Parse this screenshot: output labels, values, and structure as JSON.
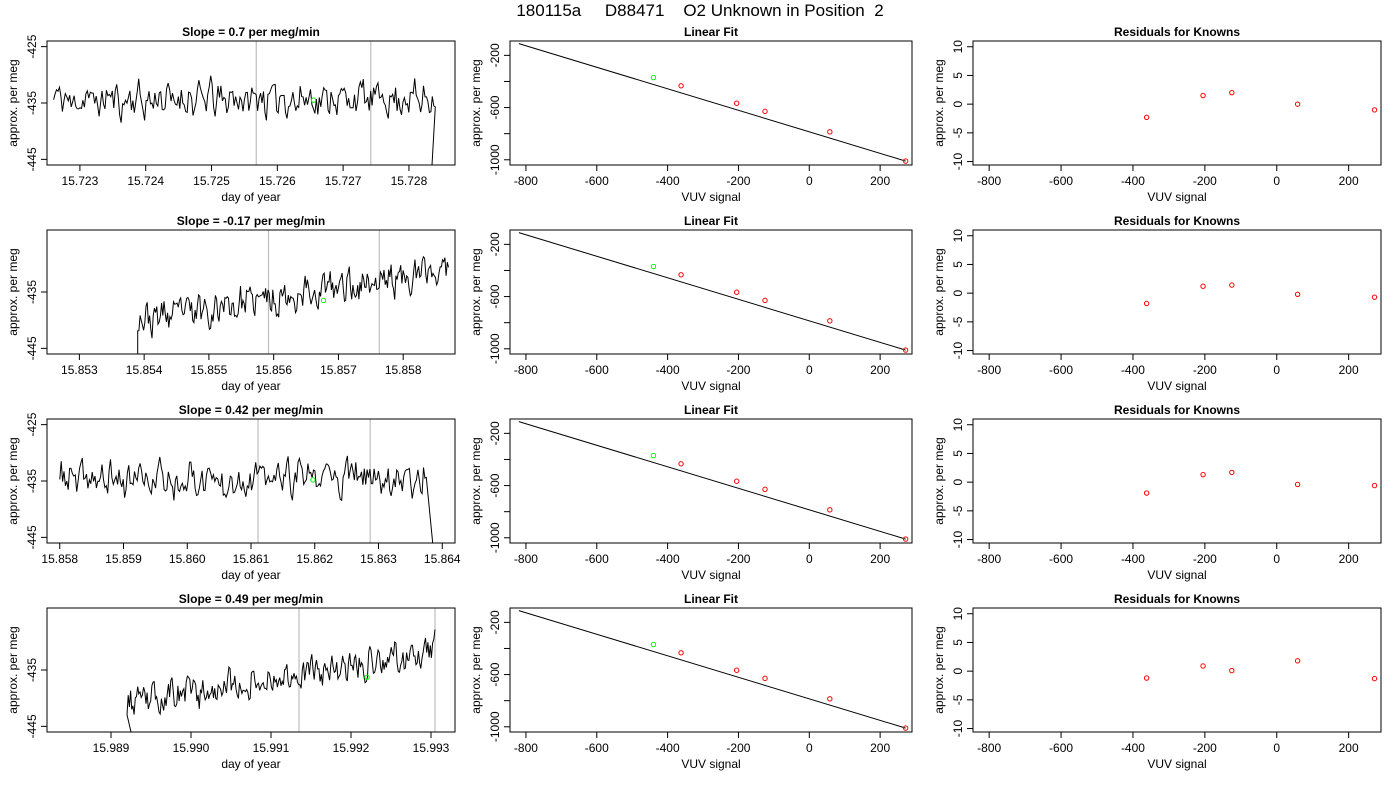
{
  "figure": {
    "title": "180115a     D88471    O2 Unknown in Position  2"
  },
  "colors": {
    "line": "#000000",
    "known_point": "#ff0000",
    "unknown_point": "#00ff00",
    "vertical_marker": "#bebebe"
  },
  "chart_data": [
    {
      "type": "line",
      "panel": "time-series",
      "title": "Slope =  0.7  per meg/min",
      "xlabel": "day of year",
      "ylabel": "approx. per meg",
      "xlim": [
        15.7225,
        15.7287
      ],
      "ylim": [
        -446,
        -424
      ],
      "xticks": [
        15.723,
        15.724,
        15.725,
        15.726,
        15.727,
        15.728
      ],
      "xtick_labels": [
        "15.723",
        "15.724",
        "15.725",
        "15.726",
        "15.727",
        "15.728"
      ],
      "yticks": [
        -425,
        -435,
        -445
      ],
      "ytick_labels": [
        "-425",
        "-435",
        "-445"
      ],
      "x_start": 15.7226,
      "x_end": 15.7284,
      "baseline": -434.5,
      "trend": 0.4,
      "noise": 4.0,
      "seed": 11,
      "end_drop": [
        15.72835,
        -446
      ],
      "start_clip": null,
      "vlines": [
        15.72568,
        15.72742
      ],
      "unknown_point": {
        "x": 15.72655,
        "y": -434.5
      }
    },
    {
      "type": "line",
      "panel": "linear-fit",
      "title": "Linear Fit",
      "xlabel": "VUV signal",
      "ylabel": "approx. per meg",
      "xlim": [
        -845,
        290
      ],
      "ylim": [
        -1040,
        -90
      ],
      "xticks": [
        -800,
        -600,
        -400,
        -200,
        0,
        200
      ],
      "xtick_labels": [
        "-800",
        "-600",
        "-400",
        "-200",
        "0",
        "200"
      ],
      "yticks": [
        -200,
        -400,
        -600,
        -800,
        -1000
      ],
      "ytick_labels": [
        "-200",
        "",
        "-600",
        "",
        "-1000"
      ],
      "fit_line": {
        "x": [
          -820,
          272
        ],
        "y": [
          -110,
          -1010
        ]
      },
      "known_points": [
        {
          "x": -362,
          "y": -433
        },
        {
          "x": -205,
          "y": -567
        },
        {
          "x": -125,
          "y": -629
        },
        {
          "x": 58,
          "y": -786
        },
        {
          "x": 272,
          "y": -1010
        }
      ],
      "unknown_point": {
        "x": -440,
        "y": -370
      }
    },
    {
      "type": "scatter",
      "panel": "residuals",
      "title": "Residuals for Knowns",
      "xlabel": "VUV signal",
      "ylabel": "approx. per meg",
      "xlim": [
        -845,
        290
      ],
      "ylim": [
        -10.6,
        11
      ],
      "xticks": [
        -800,
        -600,
        -400,
        -200,
        0,
        200
      ],
      "xtick_labels": [
        "-800",
        "-600",
        "-400",
        "-200",
        "0",
        "200"
      ],
      "yticks": [
        -10,
        -5,
        0,
        5,
        10
      ],
      "ytick_labels": [
        "-10",
        "-5",
        "0",
        "5",
        "10"
      ],
      "points": [
        {
          "x": -362,
          "y": -2.3
        },
        {
          "x": -205,
          "y": 1.5
        },
        {
          "x": -125,
          "y": 2.0
        },
        {
          "x": 58,
          "y": 0.0
        },
        {
          "x": 272,
          "y": -1.0
        }
      ]
    },
    {
      "type": "line",
      "panel": "time-series",
      "title": "Slope =  -0.17  per meg/min",
      "xlabel": "day of year",
      "ylabel": "approx. per meg",
      "xlim": [
        15.8525,
        15.8588
      ],
      "ylim": [
        -446,
        -424
      ],
      "xticks": [
        15.853,
        15.854,
        15.855,
        15.856,
        15.857,
        15.858
      ],
      "xtick_labels": [
        "15.853",
        "15.854",
        "15.855",
        "15.856",
        "15.857",
        "15.858"
      ],
      "yticks": [
        -435,
        -445
      ],
      "ytick_labels": [
        "-435",
        "-445"
      ],
      "x_start": 15.8539,
      "x_end": 15.8587,
      "baseline": -440,
      "trend": 9.0,
      "noise": 3.6,
      "seed": 23,
      "end_drop": null,
      "start_clip": [
        15.8539,
        -446
      ],
      "vlines": [
        15.85592,
        15.85763
      ],
      "unknown_point": {
        "x": 15.85677,
        "y": -436.5
      }
    },
    {
      "type": "line",
      "panel": "linear-fit",
      "title": "Linear Fit",
      "xlabel": "VUV signal",
      "ylabel": "approx. per meg",
      "xlim": [
        -845,
        290
      ],
      "ylim": [
        -1040,
        -90
      ],
      "xticks": [
        -800,
        -600,
        -400,
        -200,
        0,
        200
      ],
      "xtick_labels": [
        "-800",
        "-600",
        "-400",
        "-200",
        "0",
        "200"
      ],
      "yticks": [
        -200,
        -400,
        -600,
        -800,
        -1000
      ],
      "ytick_labels": [
        "-200",
        "",
        "-600",
        "",
        "-1000"
      ],
      "fit_line": {
        "x": [
          -820,
          272
        ],
        "y": [
          -110,
          -1010
        ]
      },
      "known_points": [
        {
          "x": -362,
          "y": -433
        },
        {
          "x": -205,
          "y": -567
        },
        {
          "x": -125,
          "y": -629
        },
        {
          "x": 58,
          "y": -786
        },
        {
          "x": 272,
          "y": -1010
        }
      ],
      "unknown_point": {
        "x": -440,
        "y": -370
      }
    },
    {
      "type": "scatter",
      "panel": "residuals",
      "title": "Residuals for Knowns",
      "xlabel": "VUV signal",
      "ylabel": "approx. per meg",
      "xlim": [
        -845,
        290
      ],
      "ylim": [
        -10.6,
        11
      ],
      "xticks": [
        -800,
        -600,
        -400,
        -200,
        0,
        200
      ],
      "xtick_labels": [
        "-800",
        "-600",
        "-400",
        "-200",
        "0",
        "200"
      ],
      "yticks": [
        -10,
        -5,
        0,
        5,
        10
      ],
      "ytick_labels": [
        "-10",
        "-5",
        "0",
        "5",
        "10"
      ],
      "points": [
        {
          "x": -362,
          "y": -1.8
        },
        {
          "x": -205,
          "y": 1.2
        },
        {
          "x": -125,
          "y": 1.4
        },
        {
          "x": 58,
          "y": -0.2
        },
        {
          "x": 272,
          "y": -0.7
        }
      ]
    },
    {
      "type": "line",
      "panel": "time-series",
      "title": "Slope =  0.42  per meg/min",
      "xlabel": "day of year",
      "ylabel": "approx. per meg",
      "xlim": [
        15.8578,
        15.8642
      ],
      "ylim": [
        -446,
        -424
      ],
      "xticks": [
        15.858,
        15.859,
        15.86,
        15.861,
        15.862,
        15.863,
        15.864
      ],
      "xtick_labels": [
        "15.858",
        "15.859",
        "15.860",
        "15.861",
        "15.862",
        "15.863",
        "15.864"
      ],
      "yticks": [
        -425,
        -435,
        -445
      ],
      "ytick_labels": [
        "-425",
        "-435",
        "-445"
      ],
      "x_start": 15.858,
      "x_end": 15.86375,
      "baseline": -434.8,
      "trend": 0.5,
      "noise": 3.8,
      "seed": 37,
      "end_drop": [
        15.86385,
        -446
      ],
      "start_clip": null,
      "vlines": [
        15.86111,
        15.86287
      ],
      "unknown_point": {
        "x": 15.86197,
        "y": -434.8
      }
    },
    {
      "type": "line",
      "panel": "linear-fit",
      "title": "Linear Fit",
      "xlabel": "VUV signal",
      "ylabel": "approx. per meg",
      "xlim": [
        -845,
        290
      ],
      "ylim": [
        -1040,
        -90
      ],
      "xticks": [
        -800,
        -600,
        -400,
        -200,
        0,
        200
      ],
      "xtick_labels": [
        "-800",
        "-600",
        "-400",
        "-200",
        "0",
        "200"
      ],
      "yticks": [
        -200,
        -400,
        -600,
        -800,
        -1000
      ],
      "ytick_labels": [
        "-200",
        "",
        "-600",
        "",
        "-1000"
      ],
      "fit_line": {
        "x": [
          -820,
          272
        ],
        "y": [
          -110,
          -1010
        ]
      },
      "known_points": [
        {
          "x": -362,
          "y": -433
        },
        {
          "x": -205,
          "y": -567
        },
        {
          "x": -125,
          "y": -629
        },
        {
          "x": 58,
          "y": -786
        },
        {
          "x": 272,
          "y": -1010
        }
      ],
      "unknown_point": {
        "x": -440,
        "y": -370
      }
    },
    {
      "type": "scatter",
      "panel": "residuals",
      "title": "Residuals for Knowns",
      "xlabel": "VUV signal",
      "ylabel": "approx. per meg",
      "xlim": [
        -845,
        290
      ],
      "ylim": [
        -10.6,
        11
      ],
      "xticks": [
        -800,
        -600,
        -400,
        -200,
        0,
        200
      ],
      "xtick_labels": [
        "-800",
        "-600",
        "-400",
        "-200",
        "0",
        "200"
      ],
      "yticks": [
        -10,
        -5,
        0,
        5,
        10
      ],
      "ytick_labels": [
        "-10",
        "-5",
        "0",
        "5",
        "10"
      ],
      "points": [
        {
          "x": -362,
          "y": -1.9
        },
        {
          "x": -205,
          "y": 1.3
        },
        {
          "x": -125,
          "y": 1.7
        },
        {
          "x": 58,
          "y": -0.4
        },
        {
          "x": 272,
          "y": -0.6
        }
      ]
    },
    {
      "type": "line",
      "panel": "time-series",
      "title": "Slope =  0.49  per meg/min",
      "xlabel": "day of year",
      "ylabel": "approx. per meg",
      "xlim": [
        15.9882,
        15.9933
      ],
      "ylim": [
        -446,
        -424
      ],
      "xticks": [
        15.989,
        15.99,
        15.991,
        15.992,
        15.993
      ],
      "xtick_labels": [
        "15.989",
        "15.990",
        "15.991",
        "15.992",
        "15.993"
      ],
      "yticks": [
        -435,
        -445
      ],
      "ytick_labels": [
        "-435",
        "-445"
      ],
      "x_start": 15.9892,
      "x_end": 15.99305,
      "baseline": -441,
      "trend": 9.5,
      "noise": 3.4,
      "seed": 53,
      "end_drop": null,
      "start_clip": [
        15.98925,
        -446
      ],
      "vlines": [
        15.99135,
        15.99305
      ],
      "unknown_point": {
        "x": 15.9922,
        "y": -436.3
      }
    },
    {
      "type": "line",
      "panel": "linear-fit",
      "title": "Linear Fit",
      "xlabel": "VUV signal",
      "ylabel": "approx. per meg",
      "xlim": [
        -845,
        290
      ],
      "ylim": [
        -1040,
        -90
      ],
      "xticks": [
        -800,
        -600,
        -400,
        -200,
        0,
        200
      ],
      "xtick_labels": [
        "-800",
        "-600",
        "-400",
        "-200",
        "0",
        "200"
      ],
      "yticks": [
        -200,
        -400,
        -600,
        -800,
        -1000
      ],
      "ytick_labels": [
        "-200",
        "",
        "-600",
        "",
        "-1000"
      ],
      "fit_line": {
        "x": [
          -820,
          272
        ],
        "y": [
          -110,
          -1010
        ]
      },
      "known_points": [
        {
          "x": -362,
          "y": -433
        },
        {
          "x": -205,
          "y": -567
        },
        {
          "x": -125,
          "y": -629
        },
        {
          "x": 58,
          "y": -786
        },
        {
          "x": 272,
          "y": -1010
        }
      ],
      "unknown_point": {
        "x": -440,
        "y": -370
      }
    },
    {
      "type": "scatter",
      "panel": "residuals",
      "title": "Residuals for Knowns",
      "xlabel": "VUV signal",
      "ylabel": "approx. per meg",
      "xlim": [
        -845,
        290
      ],
      "ylim": [
        -10.6,
        11
      ],
      "xticks": [
        -800,
        -600,
        -400,
        -200,
        0,
        200
      ],
      "xtick_labels": [
        "-800",
        "-600",
        "-400",
        "-200",
        "0",
        "200"
      ],
      "yticks": [
        -10,
        -5,
        0,
        5,
        10
      ],
      "ytick_labels": [
        "-10",
        "-5",
        "0",
        "5",
        "10"
      ],
      "points": [
        {
          "x": -362,
          "y": -1.2
        },
        {
          "x": -205,
          "y": 0.9
        },
        {
          "x": -125,
          "y": 0.1
        },
        {
          "x": 58,
          "y": 1.8
        },
        {
          "x": 272,
          "y": -1.3
        }
      ]
    }
  ]
}
